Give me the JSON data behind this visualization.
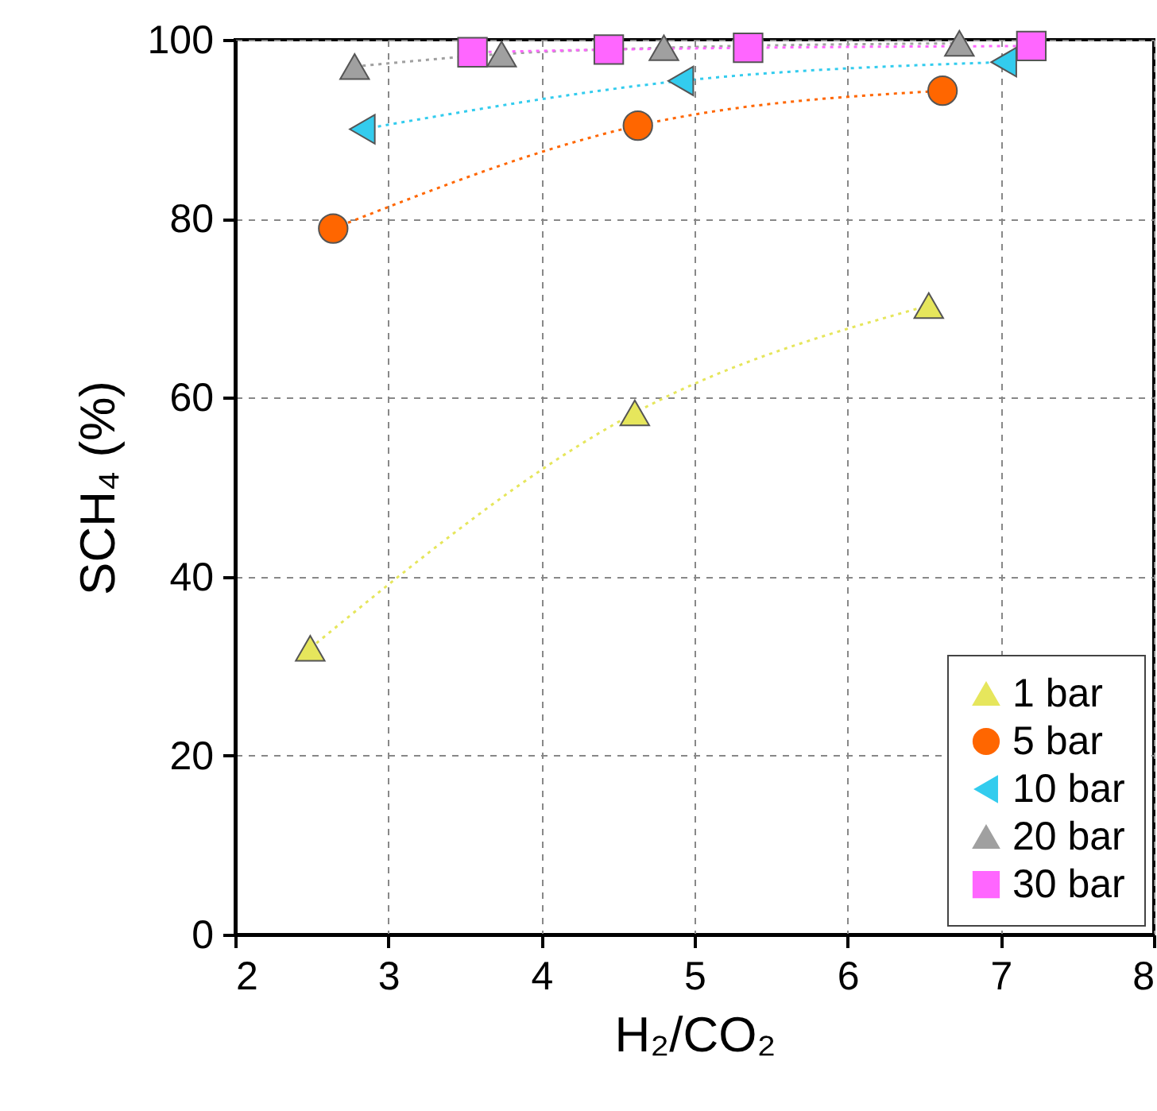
{
  "chart_data": {
    "type": "line",
    "xlabel": "H₂/CO₂",
    "ylabel": "SCH₄ (%)",
    "xlim": [
      2,
      8
    ],
    "xticks": [
      2,
      3,
      4,
      5,
      6,
      7,
      8
    ],
    "ylim": [
      0,
      100
    ],
    "yticks": [
      0,
      20,
      40,
      60,
      80,
      100
    ],
    "grid": true,
    "legend": "bottom right",
    "line_style": "dotted",
    "series": [
      {
        "name": "1 bar",
        "color": "#e6e65c",
        "marker": "triangle",
        "x": [
          2.49,
          4.61,
          6.53
        ],
        "values": [
          32.0,
          58.3,
          70.3
        ]
      },
      {
        "name": "5 bar",
        "color": "#ff6600",
        "marker": "circle",
        "x": [
          2.64,
          4.63,
          6.62
        ],
        "values": [
          78.9,
          90.4,
          94.3
        ]
      },
      {
        "name": "10 bar",
        "color": "#33ccee",
        "marker": "triangle-left",
        "x": [
          2.83,
          4.91,
          7.02
        ],
        "values": [
          90.0,
          95.4,
          97.5
        ]
      },
      {
        "name": "20 bar",
        "color": "#a0a0a0",
        "marker": "triangle",
        "x": [
          2.78,
          3.74,
          4.8,
          6.73
        ],
        "values": [
          97.0,
          98.4,
          99.1,
          99.6
        ]
      },
      {
        "name": "30 bar",
        "color": "#ff66ff",
        "marker": "square",
        "x": [
          3.55,
          4.44,
          5.35,
          7.2
        ],
        "values": [
          98.6,
          98.9,
          99.1,
          99.3
        ]
      }
    ]
  }
}
